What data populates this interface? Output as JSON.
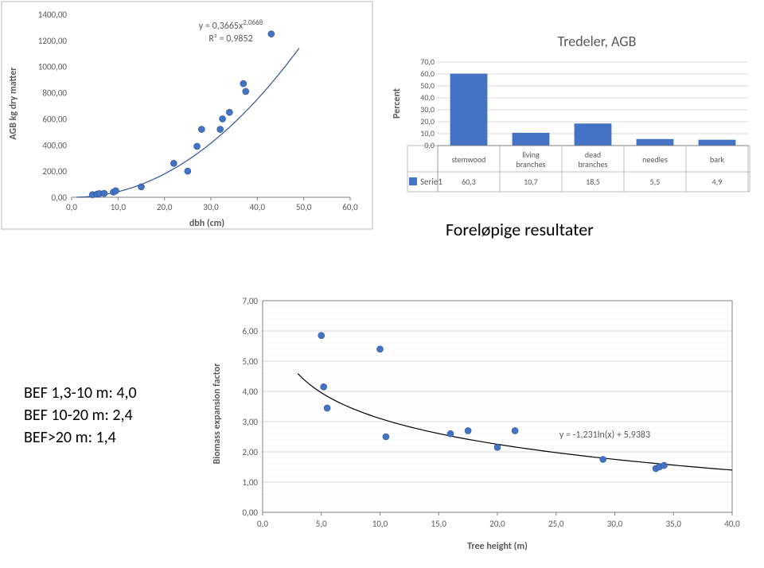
{
  "scatter": {
    "type": "scatter",
    "y_label": "AGB kg dry matter",
    "x_label": "dbh (cm)",
    "eq1": "y = 0,3665x",
    "eq1_sup": "2,0668",
    "eq2": "R² = 0,9852",
    "xlim": [
      0,
      60
    ],
    "ylim": [
      0,
      1400
    ],
    "xtick_step": 10,
    "ytick_step": 200,
    "x_ticks": [
      "0,0",
      "10,0",
      "20,0",
      "30,0",
      "40,0",
      "50,0",
      "60,0"
    ],
    "y_ticks": [
      "0,00",
      "200,00",
      "400,00",
      "600,00",
      "800,00",
      "1000,00",
      "1200,00",
      "1400,00"
    ],
    "points": [
      [
        4.5,
        20
      ],
      [
        5.5,
        25
      ],
      [
        6.0,
        28
      ],
      [
        7.0,
        30
      ],
      [
        9.0,
        40
      ],
      [
        9.5,
        50
      ],
      [
        15.0,
        80
      ],
      [
        22.0,
        260
      ],
      [
        25.0,
        200
      ],
      [
        27.0,
        390
      ],
      [
        28.0,
        520
      ],
      [
        32.0,
        520
      ],
      [
        32.5,
        600
      ],
      [
        34.0,
        650
      ],
      [
        37.0,
        870
      ],
      [
        37.5,
        810
      ],
      [
        43.0,
        1250
      ]
    ],
    "curve_color": "#2f5597",
    "marker_color": "#4472c4",
    "marker_stroke": "#2f5597",
    "grid": false,
    "border_color": "#b9b9b9",
    "label_fontsize": 12,
    "tick_fontsize": 11,
    "eq_fontsize": 12,
    "marker_radius": 4
  },
  "barchart": {
    "type": "bar",
    "title": "Tredeler, AGB",
    "title_fontsize": 18,
    "y_label": "Percent",
    "series_label": "Serie1",
    "categories": [
      "stemwood",
      "living branches",
      "dead branches",
      "needles",
      "bark"
    ],
    "values": [
      60.3,
      10.7,
      18.5,
      5.5,
      4.9
    ],
    "display_values": [
      "60,3",
      "10,7",
      "18,5",
      "5,5",
      "4,9"
    ],
    "y_ticks": [
      "0,0",
      "10,0",
      "20,0",
      "30,0",
      "40,0",
      "50,0",
      "60,0",
      "70,0"
    ],
    "ylim": [
      0,
      70
    ],
    "bar_color": "#4472c4",
    "grid_color": "#d9d9d9",
    "axis_color": "#7f7f7f",
    "legend_box_color": "#4472c4",
    "bar_width": 0.6,
    "title_color": "#595959"
  },
  "results_label": "Foreløpige resultater",
  "bef_chart": {
    "type": "scatter",
    "x_label": "Tree height (m)",
    "y_label": "Biomass expansion factor",
    "eq": "y = -1,231ln(x) + 5,9383",
    "xlim": [
      0,
      40
    ],
    "ylim": [
      0,
      7
    ],
    "xtick_step": 5,
    "ytick_step": 1,
    "x_ticks": [
      "0,0",
      "5,0",
      "10,0",
      "15,0",
      "20,0",
      "25,0",
      "30,0",
      "35,0",
      "40,0"
    ],
    "y_ticks": [
      "0,00",
      "1,00",
      "2,00",
      "3,00",
      "4,00",
      "5,00",
      "6,00",
      "7,00"
    ],
    "points": [
      [
        5.0,
        5.85
      ],
      [
        5.2,
        4.15
      ],
      [
        5.5,
        3.45
      ],
      [
        10.0,
        5.4
      ],
      [
        10.5,
        2.5
      ],
      [
        16.0,
        2.6
      ],
      [
        17.5,
        2.7
      ],
      [
        20.0,
        2.15
      ],
      [
        21.5,
        2.7
      ],
      [
        29.0,
        1.75
      ],
      [
        33.5,
        1.45
      ],
      [
        33.8,
        1.5
      ],
      [
        34.2,
        1.55
      ]
    ],
    "curve_color": "#000000",
    "marker_color": "#4472c4",
    "marker_stroke": "#2f5597",
    "grid_color": "#d9d9d9",
    "minor_grid_color": "#f2f2f2",
    "axis_color": "#7f7f7f",
    "marker_radius": 4
  },
  "bef_text": {
    "line1": "BEF 1,3-10 m: 4,0",
    "line2": "BEF 10-20 m:  2,4",
    "line3": "BEF>20 m:      1,4"
  }
}
